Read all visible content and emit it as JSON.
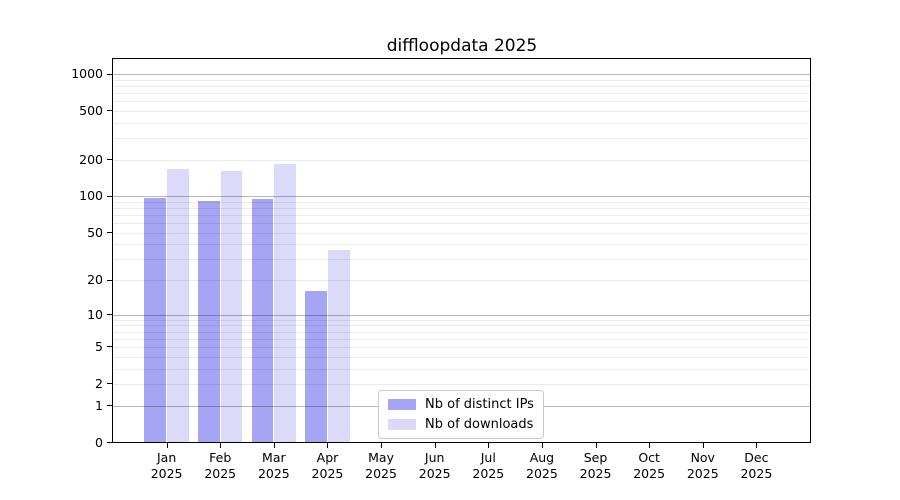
{
  "chart_data": {
    "type": "bar",
    "title": "diffloopdata 2025",
    "categories": [
      "Jan",
      "Feb",
      "Mar",
      "Apr",
      "May",
      "Jun",
      "Jul",
      "Aug",
      "Sep",
      "Oct",
      "Nov",
      "Dec"
    ],
    "category_year": "2025",
    "series": [
      {
        "name": "Nb of distinct IPs",
        "color": "#a5a5f3",
        "values": [
          97,
          91,
          95,
          16,
          0,
          0,
          0,
          0,
          0,
          0,
          0,
          0
        ]
      },
      {
        "name": "Nb of downloads",
        "color": "#dbdbf9",
        "values": [
          168,
          163,
          184,
          36,
          0,
          0,
          0,
          0,
          0,
          0,
          0,
          0
        ]
      }
    ],
    "xlabel": "",
    "ylabel": "",
    "y_scale": "log1p",
    "y_ticks": [
      0,
      1,
      2,
      5,
      10,
      20,
      50,
      100,
      200,
      500,
      1000
    ],
    "y_minor_gridlines": [
      2,
      3,
      4,
      5,
      6,
      7,
      8,
      9,
      20,
      30,
      40,
      50,
      60,
      70,
      80,
      90,
      200,
      300,
      400,
      500,
      600,
      700,
      800,
      900
    ],
    "y_major_gridlines": [
      1,
      10,
      100,
      1000
    ],
    "ylim": [
      0,
      1350
    ],
    "grid": true,
    "legend_position": "lower center"
  }
}
